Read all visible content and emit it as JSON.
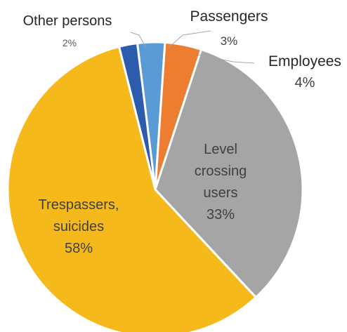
{
  "chart_data": {
    "type": "pie",
    "start_angle_deg": -7,
    "direction": "clockwise",
    "slices": [
      {
        "label_lines": [
          "Passengers"
        ],
        "percent_label": "3%",
        "value": 3,
        "color": "#5b9bd5",
        "label_position": "outside"
      },
      {
        "label_lines": [
          "Employees"
        ],
        "percent_label": "4%",
        "value": 4,
        "color": "#ed7d31",
        "label_position": "outside"
      },
      {
        "label_lines": [
          "Level",
          "crossing",
          "users"
        ],
        "percent_label": "33%",
        "value": 33,
        "color": "#a5a5a5",
        "label_position": "inside"
      },
      {
        "label_lines": [
          "Trespassers,",
          "suicides"
        ],
        "percent_label": "58%",
        "value": 58,
        "color": "#f6b91c",
        "label_position": "inside"
      },
      {
        "label_lines": [
          "Other persons"
        ],
        "percent_label": "2%",
        "value": 2,
        "color": "#2e5cad",
        "label_position": "outside"
      }
    ],
    "title": "",
    "legend": "none"
  }
}
